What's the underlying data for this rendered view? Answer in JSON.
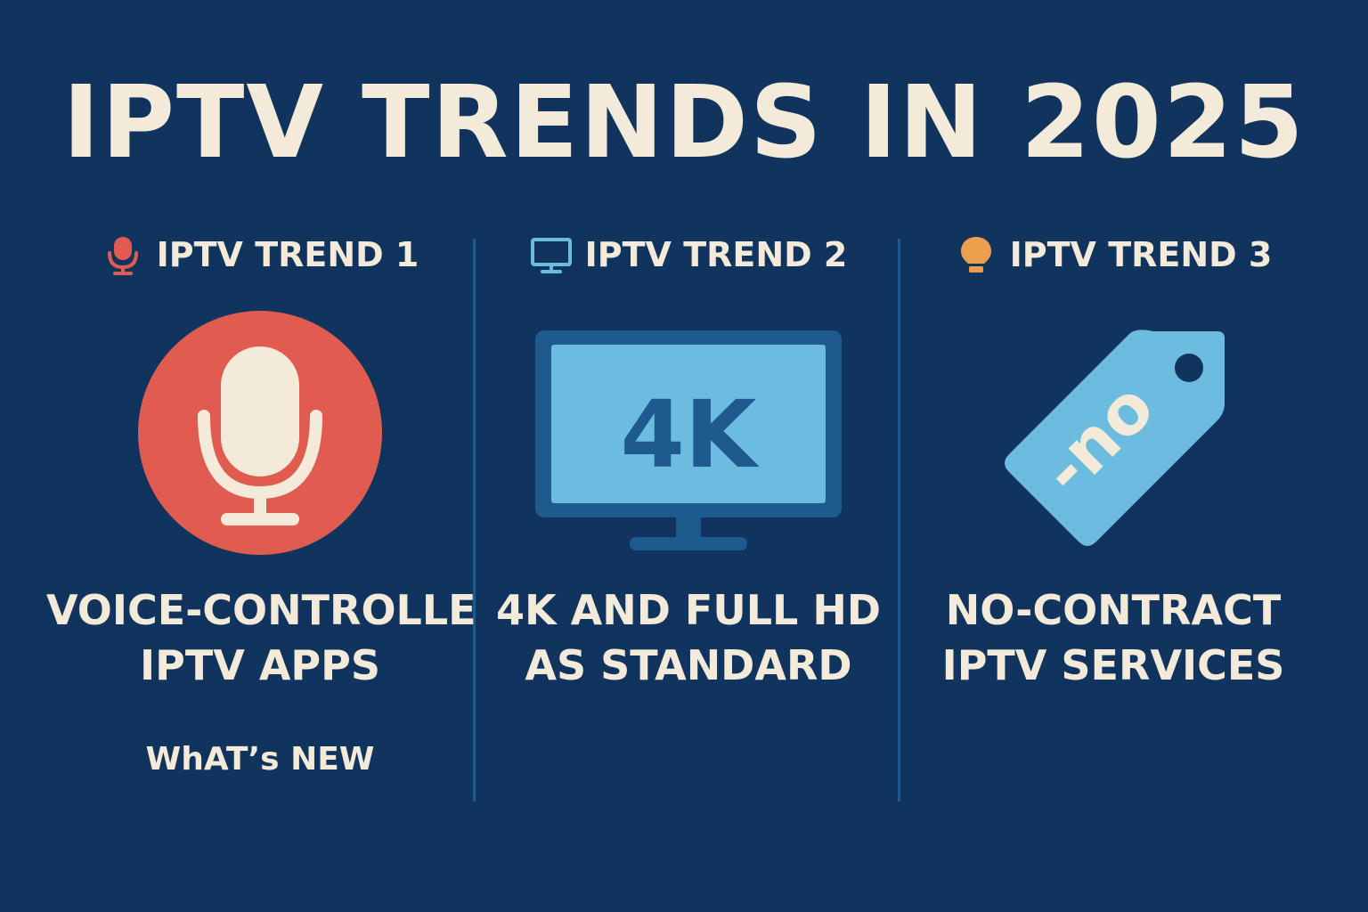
{
  "title": "IPTV TRENDS IN 2025",
  "colors": {
    "background": "#11345e",
    "text": "#f3ead9",
    "red": "#e05c50",
    "blue": "#6bbcde",
    "orange": "#eca04e"
  },
  "trends": [
    {
      "label": "IPTV TREND 1",
      "icon": "microphone-icon",
      "caption_line1": "VOICE-CONTROLLE",
      "caption_line2": "IPTV APPS",
      "extra": "WhAT’s NEW"
    },
    {
      "label": "IPTV TREND 2",
      "icon": "monitor-icon",
      "screen_text": "4K",
      "caption_line1": "4K AND FULL HD",
      "caption_line2": "AS STANDARD"
    },
    {
      "label": "IPTV TREND 3",
      "icon": "lightbulb-icon",
      "tag_text": "-no",
      "caption_line1": "NO-CONTRACT",
      "caption_line2": "IPTV SERVICES"
    }
  ]
}
